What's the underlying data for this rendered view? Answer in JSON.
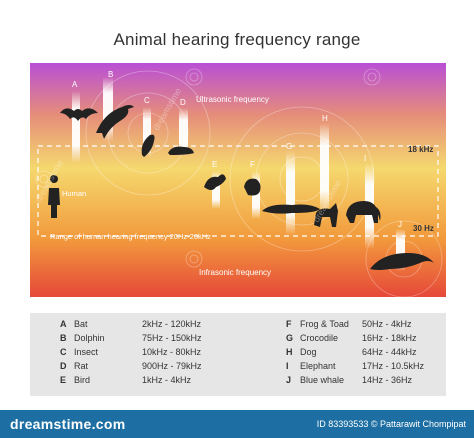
{
  "title": "Animal hearing frequency range",
  "colors": {
    "top": "#b94fd6",
    "upper": "#e58d7a",
    "middle": "#f5d86e",
    "lower": "#f29a3c",
    "bottom": "#e6483a",
    "footer": "#1d6fa3",
    "legend_bg": "#e6e6e6"
  },
  "bands": {
    "ultrasonic_label": "Ultrasonic frequency",
    "infrasonic_label": "Infrasonic frequency",
    "human_range_label": "Range of human hearing frequency 20Hz-20kHz",
    "upper_marker": "18 kHz",
    "lower_marker": "30 Hz",
    "human_label": "Human"
  },
  "animals": [
    {
      "letter": "A",
      "name": "Bat",
      "range": "2kHz - 120kHz",
      "icon": "bat-icon"
    },
    {
      "letter": "B",
      "name": "Dolphin",
      "range": "75Hz - 150kHz",
      "icon": "dolphin-icon"
    },
    {
      "letter": "C",
      "name": "Insect",
      "range": "10kHz - 80kHz",
      "icon": "insect-icon"
    },
    {
      "letter": "D",
      "name": "Rat",
      "range": "900Hz - 79kHz",
      "icon": "rat-icon"
    },
    {
      "letter": "E",
      "name": "Bird",
      "range": "1kHz - 4kHz",
      "icon": "bird-icon"
    },
    {
      "letter": "F",
      "name": "Frog & Toad",
      "range": "50Hz - 4kHz",
      "icon": "frog-icon"
    },
    {
      "letter": "G",
      "name": "Crocodile",
      "range": "16Hz - 18kHz",
      "icon": "crocodile-icon"
    },
    {
      "letter": "H",
      "name": "Dog",
      "range": "64Hz - 44kHz",
      "icon": "dog-icon"
    },
    {
      "letter": "I",
      "name": "Elephant",
      "range": "17Hz - 10.5kHz",
      "icon": "elephant-icon"
    },
    {
      "letter": "J",
      "name": "Blue whale",
      "range": "14Hz - 36Hz",
      "icon": "whale-icon"
    }
  ],
  "watermark": "dreamstime",
  "footer": {
    "logo": "dreamstime.com",
    "credit": "ID 83393533 © Pattarawit Chompipat"
  }
}
